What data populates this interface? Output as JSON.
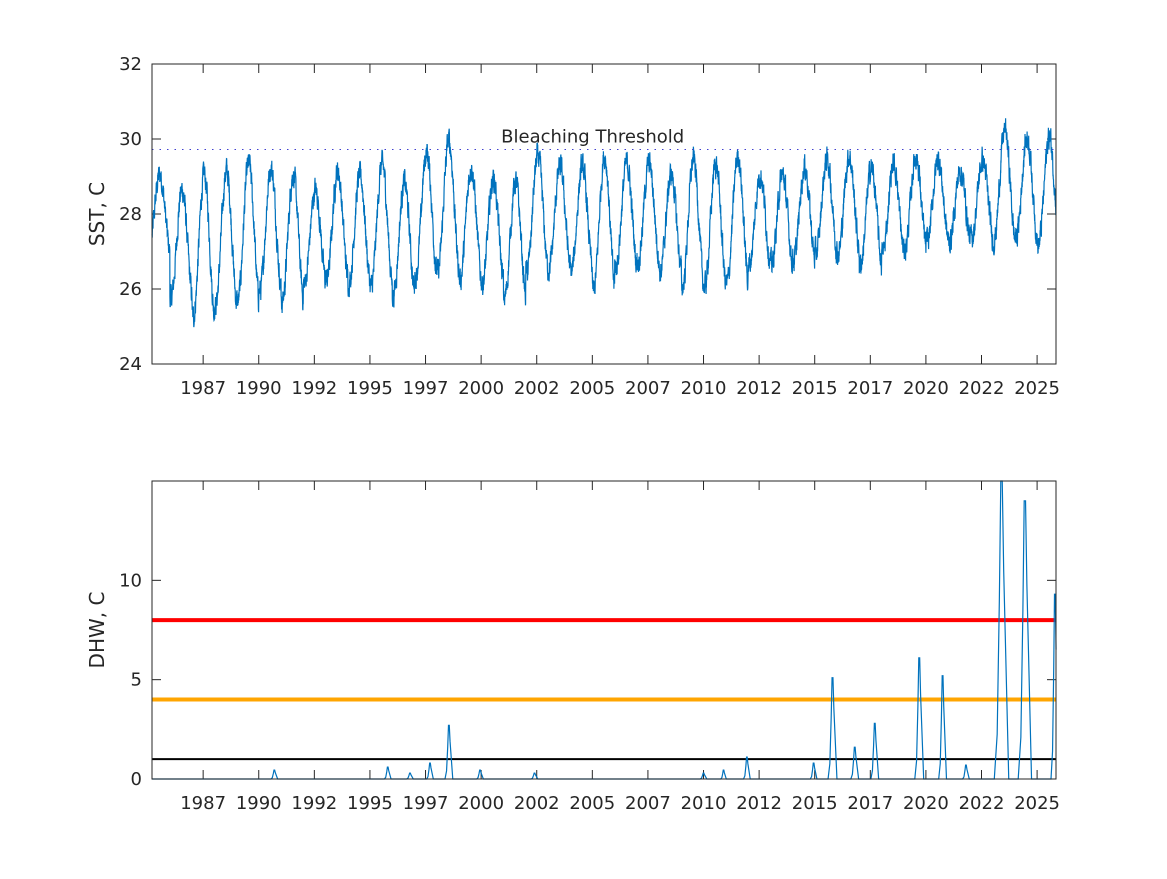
{
  "chart_data": [
    {
      "type": "line",
      "ylabel": "SST, C",
      "ylim": [
        24,
        32
      ],
      "yticks": [
        24,
        26,
        28,
        30,
        32
      ],
      "xlim": [
        1985.2,
        2025.85
      ],
      "xticks": [
        1987.5,
        1990,
        1992.5,
        1995,
        1997.5,
        2000,
        2002.5,
        2005,
        2007.5,
        2010,
        2012.5,
        2015,
        2017.5,
        2020,
        2022.5,
        2025
      ],
      "xticklabels": [
        "1987",
        "1990",
        "1992",
        "1995",
        "1997",
        "2000",
        "2002",
        "2005",
        "2007",
        "2010",
        "2012",
        "2015",
        "2017",
        "2020",
        "2022",
        "2025"
      ],
      "threshold": {
        "label": "Bleaching Threshold",
        "value": 29.72,
        "color": "#4040d0"
      },
      "series_color": "#0072bd",
      "seasonal_extremes": {
        "years": [
          1985,
          1986,
          1987,
          1988,
          1989,
          1990,
          1991,
          1992,
          1993,
          1994,
          1995,
          1996,
          1997,
          1998,
          1999,
          2000,
          2001,
          2002,
          2003,
          2004,
          2005,
          2006,
          2007,
          2008,
          2009,
          2010,
          2011,
          2012,
          2013,
          2014,
          2015,
          2016,
          2017,
          2018,
          2019,
          2020,
          2021,
          2022,
          2023,
          2024,
          2025
        ],
        "winter_min": [
          26.6,
          25.4,
          24.9,
          25.2,
          25.3,
          25.6,
          25.3,
          25.8,
          25.9,
          25.8,
          25.7,
          25.5,
          26.0,
          26.1,
          25.9,
          25.8,
          25.4,
          26.1,
          26.2,
          26.1,
          25.6,
          26.2,
          26.4,
          26.1,
          25.7,
          25.7,
          25.8,
          26.3,
          26.3,
          26.4,
          26.6,
          26.6,
          26.3,
          26.6,
          26.7,
          26.9,
          26.9,
          27.0,
          26.9,
          27.0,
          26.8
        ],
        "summer_max": [
          29.4,
          29.0,
          29.4,
          29.5,
          29.7,
          29.6,
          29.4,
          29.0,
          29.5,
          29.4,
          29.7,
          29.2,
          30.0,
          30.3,
          29.6,
          29.3,
          29.2,
          29.9,
          29.6,
          29.6,
          29.9,
          29.7,
          29.7,
          29.4,
          29.8,
          29.7,
          29.9,
          29.4,
          29.4,
          29.6,
          29.8,
          29.9,
          29.6,
          29.7,
          29.9,
          29.8,
          29.5,
          29.8,
          30.6,
          30.4,
          30.4
        ]
      }
    },
    {
      "type": "line",
      "ylabel": "DHW, C",
      "ylim": [
        0,
        15
      ],
      "yticks": [
        0,
        5,
        10
      ],
      "xlim": [
        1985.2,
        2025.85
      ],
      "xticks": [
        1987.5,
        1990,
        1992.5,
        1995,
        1997.5,
        2000,
        2002.5,
        2005,
        2007.5,
        2010,
        2012.5,
        2015,
        2017.5,
        2020,
        2022.5,
        2025
      ],
      "xticklabels": [
        "1987",
        "1990",
        "1992",
        "1995",
        "1997",
        "2000",
        "2002",
        "2005",
        "2007",
        "2010",
        "2012",
        "2015",
        "2017",
        "2020",
        "2022",
        "2025"
      ],
      "series_color": "#0072bd",
      "reference_lines": [
        {
          "value": 1,
          "color": "#000000"
        },
        {
          "value": 4,
          "color": "#ffa500"
        },
        {
          "value": 8,
          "color": "#ff0000"
        }
      ],
      "events": {
        "columns": [
          "center_year",
          "peak_dhw",
          "duration_years"
        ],
        "rows": [
          [
            1990.7,
            0.45,
            0.3
          ],
          [
            1995.8,
            0.6,
            0.3
          ],
          [
            1996.8,
            0.3,
            0.3
          ],
          [
            1997.7,
            0.8,
            0.3
          ],
          [
            1998.55,
            2.7,
            0.35
          ],
          [
            1999.95,
            0.45,
            0.3
          ],
          [
            2002.4,
            0.3,
            0.3
          ],
          [
            2010.0,
            0.3,
            0.3
          ],
          [
            2010.9,
            0.45,
            0.25
          ],
          [
            2011.95,
            1.1,
            0.3
          ],
          [
            2014.95,
            0.8,
            0.3
          ],
          [
            2015.8,
            5.1,
            0.4
          ],
          [
            2016.8,
            1.6,
            0.35
          ],
          [
            2017.7,
            2.8,
            0.35
          ],
          [
            2019.7,
            6.1,
            0.4
          ],
          [
            2020.75,
            5.2,
            0.35
          ],
          [
            2021.8,
            0.7,
            0.3
          ],
          [
            2023.4,
            15.0,
            0.65
          ],
          [
            2024.45,
            14.0,
            0.6
          ],
          [
            2025.8,
            9.3,
            0.35
          ]
        ]
      }
    }
  ]
}
